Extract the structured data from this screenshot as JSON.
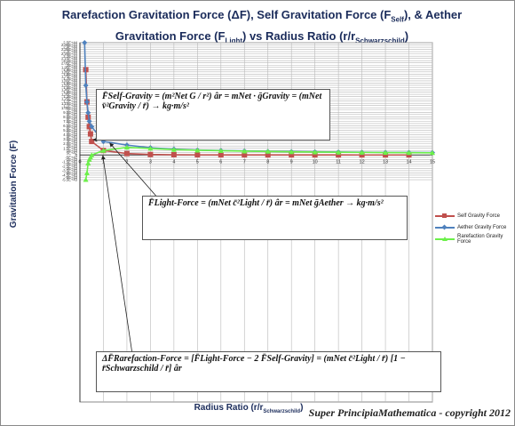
{
  "title_line1": "Rarefaction Gravitation Force (ΔF), Self Gravitation Force (F",
  "title_line1_sub": "Self",
  "title_line1_end": "), & Aether",
  "title_line2": "Gravitation Force (F",
  "title_line2_sub": "Light",
  "title_line2_end": ")   vs   Radius Ratio (r/r",
  "title_line2_sub2": "Schwarzschild",
  "title_line2_close": ")",
  "ylabel": "Gravitation Force (F)",
  "xlabel_main": "Radius Ratio (r/r",
  "xlabel_sub": "Schwarzschild",
  "xlabel_close": ")",
  "copyright": "Super PrincipiaMathematica - copyright 2012",
  "equations": {
    "self": "F̄Self-Gravity = (m²Net G / r²) âr = mNet · ḡGravity = (mNet v̄²Gravity / r̄) → kg·m/s²",
    "light": "F̄Light-Force = (mNet c̄²Light / r̄) âr = mNet ḡAether → kg·m/s²",
    "rarefaction": "ΔF̄Rarefaction-Force = [F̄Light-Force − 2 F̄Self-Gravity] = (mNet c̄²Light / r̄) [1 − r̄Schwarzschild / r̄] âr"
  },
  "colors": {
    "self": "#c0504d",
    "aether": "#4f81bd",
    "rarefaction": "#6cf04a",
    "grid": "#b8b8b8",
    "axis": "#333333",
    "title": "#1a2b5a"
  },
  "chart_data": {
    "type": "line",
    "title": "Rarefaction Gravitation Force (ΔF), Self Gravitation Force (FSelf), & Aether Gravitation Force (FLight) vs Radius Ratio (r/rSchwarzschild)",
    "xlabel": "Radius Ratio (r/rSchwarzschild)",
    "ylabel": "Gravitation Force (F)",
    "xlim": [
      0,
      15
    ],
    "ylim": [
      -5.5e+44,
      2.5e+44
    ],
    "x_ticks": [
      "0",
      "1",
      "2",
      "3",
      "4",
      "5",
      "6",
      "7",
      "8",
      "9",
      "10",
      "11",
      "12",
      "13",
      "14",
      "15"
    ],
    "y_ticks": [
      "2.5E+44",
      "2.45E+44",
      "2.4E+44",
      "2.35E+44",
      "2.3E+44",
      "2.25E+44",
      "2.2E+44",
      "2.15E+44",
      "2.1E+44",
      "2.05E+44",
      "2E+44",
      "1.95E+44",
      "1.9E+44",
      "1.85E+44",
      "1.8E+44",
      "1.75E+44",
      "1.7E+44",
      "1.65E+44",
      "1.6E+44",
      "1.55E+44",
      "1.5E+44",
      "1.45E+44",
      "1.4E+44",
      "1.35E+44",
      "1.3E+44",
      "1.25E+44",
      "1.2E+44",
      "1.15E+44",
      "1.1E+44",
      "1.05E+44",
      "1E+44",
      "9.5E+43",
      "9E+43",
      "8.5E+43",
      "8E+43",
      "7.5E+43",
      "7E+43",
      "6.5E+43",
      "6E+43",
      "5.5E+43",
      "5E+43",
      "4.5E+43",
      "4E+43",
      "3.5E+43",
      "3E+43",
      "2.5E+43",
      "2E+43",
      "1.5E+43",
      "1E+43",
      "5E+42",
      "0",
      "-5E+42",
      "-1E+43",
      "-1.5E+43",
      "-2E+43",
      "-2.5E+43",
      "-3E+43",
      "-3.5E+43",
      "-4E+43",
      "-4.5E+43",
      "-5E+43",
      "-5.5E+43"
    ],
    "y_tick_values": [
      2.5e+44,
      2.45e+44,
      2.4e+44,
      2.35e+44,
      2.3e+44,
      2.25e+44,
      2.2e+44,
      2.15e+44,
      2.1e+44,
      2.05e+44,
      2e+44,
      1.95e+44,
      1.9e+44,
      1.85e+44,
      1.8e+44,
      1.75e+44,
      1.7e+44,
      1.65e+44,
      1.6e+44,
      1.55e+44,
      1.5e+44,
      1.45e+44,
      1.4e+44,
      1.35e+44,
      1.3e+44,
      1.25e+44,
      1.2e+44,
      1.15e+44,
      1.1e+44,
      1.05e+44,
      1e+44,
      9.5e+43,
      9e+43,
      8.5e+43,
      8e+43,
      7.5e+43,
      7e+43,
      6.5e+43,
      6e+43,
      5.5e+43,
      5e+43,
      4.5e+43,
      4e+43,
      3.5e+43,
      3e+43,
      2.5e+43,
      2e+43,
      1.5e+43,
      1e+43,
      5e+42,
      0,
      -5e+42,
      -1e+43,
      -1.5e+43,
      -2e+43,
      -2.5e+43,
      -3e+43,
      -3.5e+43,
      -4e+43,
      -4.5e+43,
      -5e+43,
      -5.5e+43
    ],
    "grid": true,
    "legend_position": "right",
    "series": [
      {
        "name": "Self Gravity Force",
        "color": "#c0504d",
        "marker": "square",
        "points": [
          [
            0.25,
            1.9e+44
          ],
          [
            0.3,
            1.18e+44
          ],
          [
            0.35,
            8.4e+43
          ],
          [
            0.4,
            6.3e+43
          ],
          [
            0.45,
            4.7e+43
          ],
          [
            0.5,
            3e+43
          ],
          [
            1,
            1e+43
          ],
          [
            2,
            3.2e+42
          ],
          [
            3,
            1.1e+42
          ],
          [
            4,
            5e+41
          ],
          [
            5,
            2.7e+41
          ],
          [
            6,
            1.6e+41
          ],
          [
            7,
            1e+41
          ],
          [
            8,
            7e+40
          ],
          [
            9,
            5e+40
          ],
          [
            10,
            3.5e+40
          ],
          [
            11,
            2.6e+40
          ],
          [
            12,
            2e+40
          ],
          [
            13,
            1.5e+40
          ],
          [
            14,
            1.2e+40
          ]
        ]
      },
      {
        "name": "Aether Gravity Force",
        "color": "#4f81bd",
        "marker": "diamond",
        "points": [
          [
            0.2,
            2.5e+44
          ],
          [
            0.25,
            1.55e+44
          ],
          [
            0.3,
            1.18e+44
          ],
          [
            0.35,
            9.4e+43
          ],
          [
            0.4,
            7.5e+43
          ],
          [
            0.5,
            6.3e+43
          ],
          [
            1,
            3e+43
          ],
          [
            2,
            2.2e+43
          ],
          [
            3,
            1.6e+43
          ],
          [
            4,
            1.3e+43
          ],
          [
            5,
            1.1e+43
          ],
          [
            6,
            1e+43
          ],
          [
            7,
            9e+42
          ],
          [
            8,
            8e+42
          ],
          [
            9,
            7.5e+42
          ],
          [
            10,
            7e+42
          ],
          [
            11,
            6.5e+42
          ],
          [
            12,
            6e+42
          ],
          [
            13,
            5.7e+42
          ],
          [
            14,
            5.5e+42
          ],
          [
            15,
            5.3e+42
          ]
        ]
      },
      {
        "name": "Rarefaction Gravity Force",
        "color": "#6cf04a",
        "marker": "triangle",
        "points": [
          [
            0.25,
            -5.5e+43
          ],
          [
            0.3,
            -4e+43
          ],
          [
            0.35,
            -1.8e+43
          ],
          [
            0.4,
            -1e+43
          ],
          [
            0.45,
            -5e+42
          ],
          [
            0.5,
            0
          ],
          [
            1,
            1e+43
          ],
          [
            2,
            1.7e+43
          ],
          [
            3,
            1.45e+43
          ],
          [
            4,
            1.2e+43
          ],
          [
            5,
            1.05e+43
          ],
          [
            6,
            9.5e+42
          ],
          [
            7,
            8.5e+42
          ],
          [
            8,
            7.8e+42
          ],
          [
            9,
            7e+42
          ],
          [
            10,
            6.5e+42
          ],
          [
            11,
            6e+42
          ],
          [
            12,
            5.7e+42
          ],
          [
            13,
            5.4e+42
          ],
          [
            14,
            5.1e+42
          ],
          [
            15,
            4.9e+42
          ]
        ]
      }
    ]
  }
}
